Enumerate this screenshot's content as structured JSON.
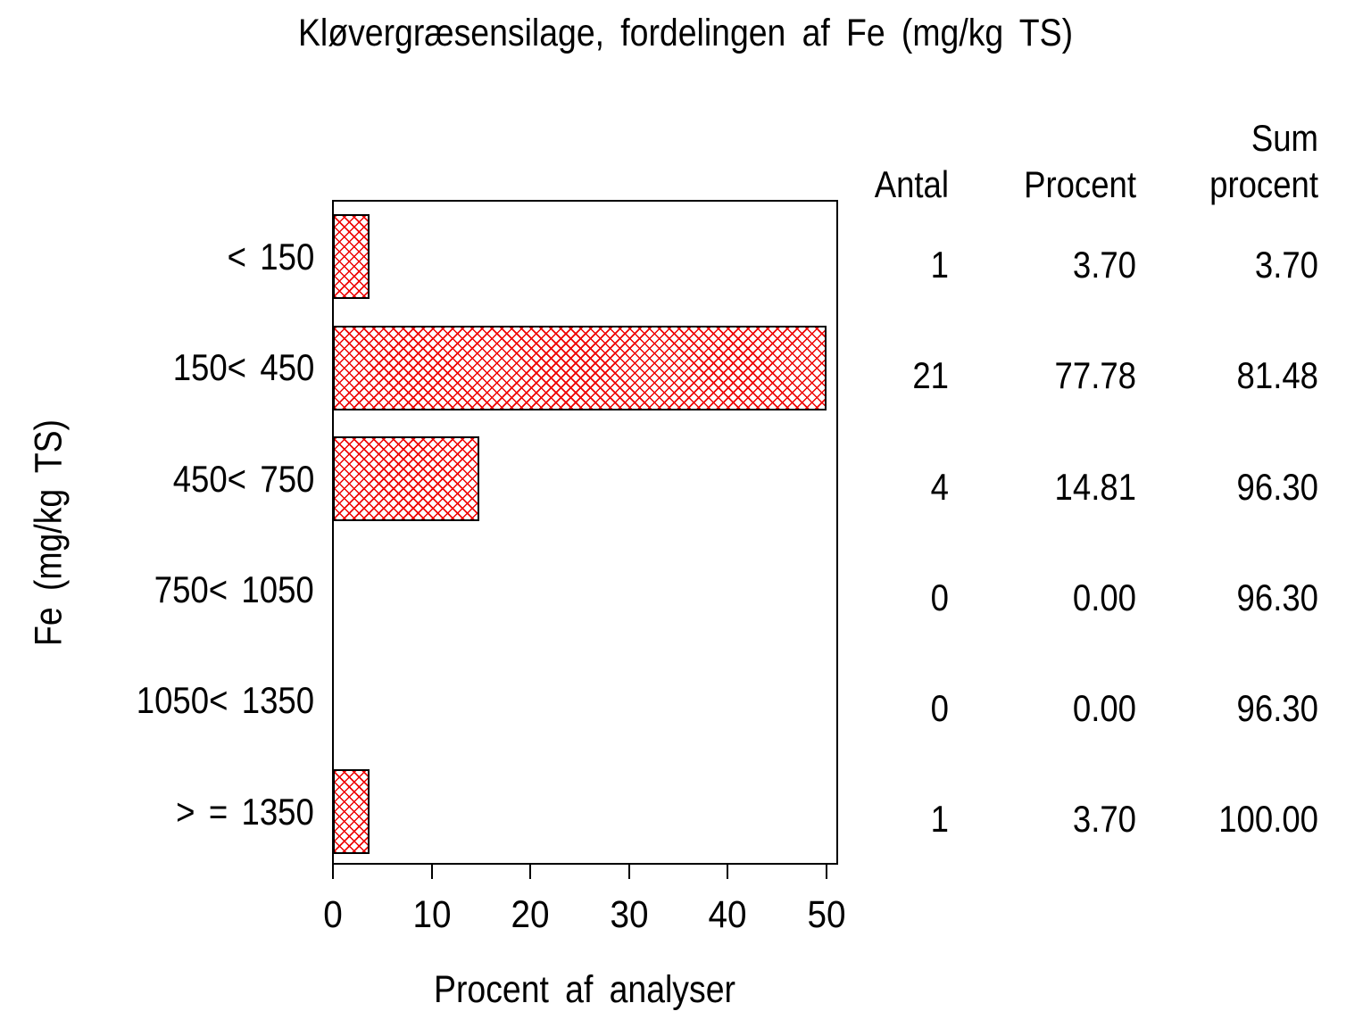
{
  "chart_data": {
    "type": "bar",
    "orientation": "horizontal",
    "title": "Kløvergræsensilage,  fordelingen  af  Fe  (mg/kg  TS)",
    "xlabel": "Procent  af  analyser",
    "ylabel": "Fe  (mg/kg  TS)",
    "xlim": [
      0,
      50
    ],
    "x_tick_labels": [
      "0",
      "10",
      "20",
      "30",
      "40",
      "50"
    ],
    "grid": false,
    "bar_style": {
      "hatch": "diagonal-crosshatch",
      "hatch_color": "#ee0000",
      "border_color": "#000000",
      "fill_background": "#ffffff",
      "bars_clipped_at_axis_max": true
    },
    "categories": [
      "< 150",
      "150< 450",
      "450< 750",
      "750< 1050",
      "1050< 1350",
      "> = 1350"
    ],
    "series": [
      {
        "name": "Procent af analyser",
        "values": [
          3.7,
          77.78,
          14.81,
          0.0,
          0.0,
          3.7
        ]
      }
    ],
    "table": {
      "col_headers": {
        "antal": "Antal",
        "procent": "Procent",
        "sum_line1": "Sum",
        "sum_line2": "procent"
      },
      "rows": [
        {
          "antal": "1",
          "procent": "3.70",
          "sum": "3.70"
        },
        {
          "antal": "21",
          "procent": "77.78",
          "sum": "81.48"
        },
        {
          "antal": "4",
          "procent": "14.81",
          "sum": "96.30"
        },
        {
          "antal": "0",
          "procent": "0.00",
          "sum": "96.30"
        },
        {
          "antal": "0",
          "procent": "0.00",
          "sum": "96.30"
        },
        {
          "antal": "1",
          "procent": "3.70",
          "sum": "100.00"
        }
      ]
    },
    "colors": {
      "text": "#000000",
      "background": "#ffffff",
      "bar_hatch": "#ee0000"
    }
  }
}
